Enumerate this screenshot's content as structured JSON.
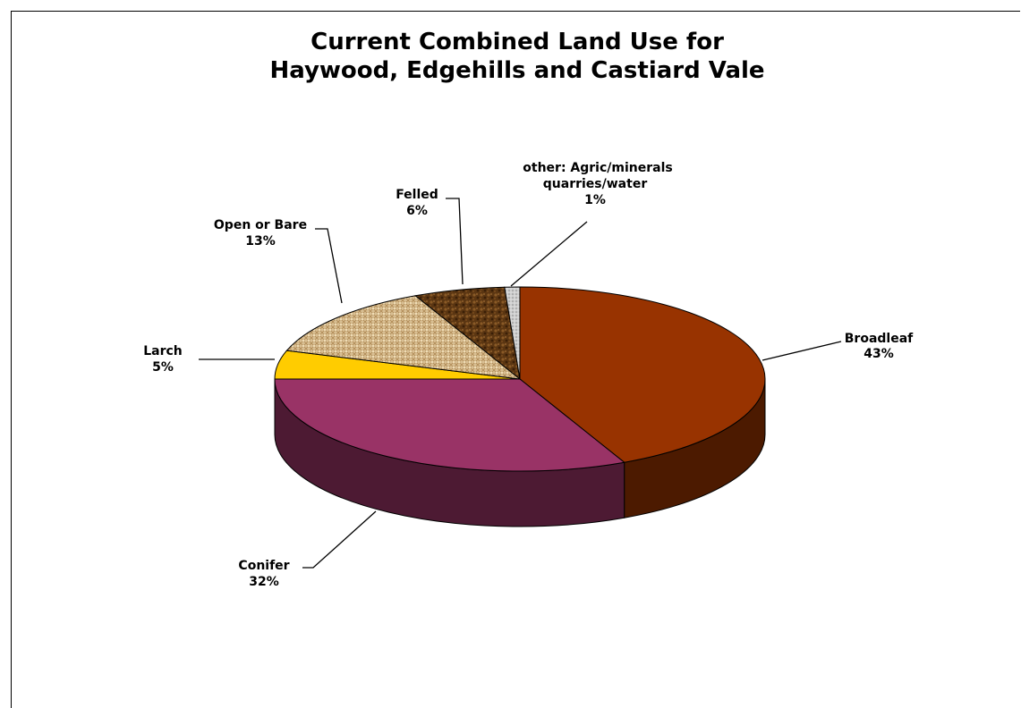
{
  "chart_data": {
    "type": "pie",
    "title_lines": [
      "Current Combined Land Use for",
      "Haywood, Edgehills and Castiard Vale"
    ],
    "three_d": true,
    "slices": [
      {
        "name": "Broadleaf",
        "pct_label": "43%",
        "value": 43,
        "color": "#983300"
      },
      {
        "name": "Conifer",
        "pct_label": "32%",
        "value": 32,
        "color": "#993366"
      },
      {
        "name": "Larch",
        "pct_label": "5%",
        "value": 5,
        "color": "#ffcc00"
      },
      {
        "name": "Open or Bare",
        "pct_label": "13%",
        "value": 13,
        "color": "#d7bc8f"
      },
      {
        "name": "Felled",
        "pct_label": "6%",
        "value": 6,
        "color": "#5a3510"
      },
      {
        "name_lines": [
          "other: Agric/minerals",
          "quarries/water"
        ],
        "pct_label": "1%",
        "value": 1,
        "color": "#c0c0c0"
      }
    ]
  }
}
